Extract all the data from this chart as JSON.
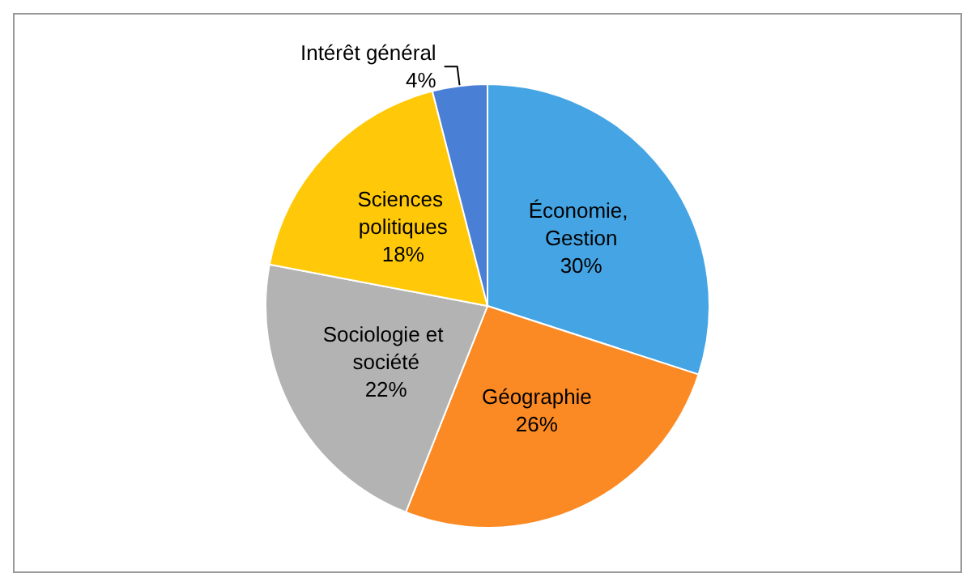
{
  "chart_data": {
    "type": "pie",
    "categories": [
      "Économie, Gestion",
      "Géographie",
      "Sociologie et société",
      "Sciences politiques",
      "Intérêt général"
    ],
    "values": [
      30,
      26,
      22,
      18,
      4
    ],
    "value_labels": [
      "30%",
      "26%",
      "22%",
      "18%",
      "4%"
    ],
    "colors": [
      "#45a5e4",
      "#fb8a24",
      "#b3b3b3",
      "#ffc90a",
      "#4a7fd6"
    ],
    "legend": false
  }
}
